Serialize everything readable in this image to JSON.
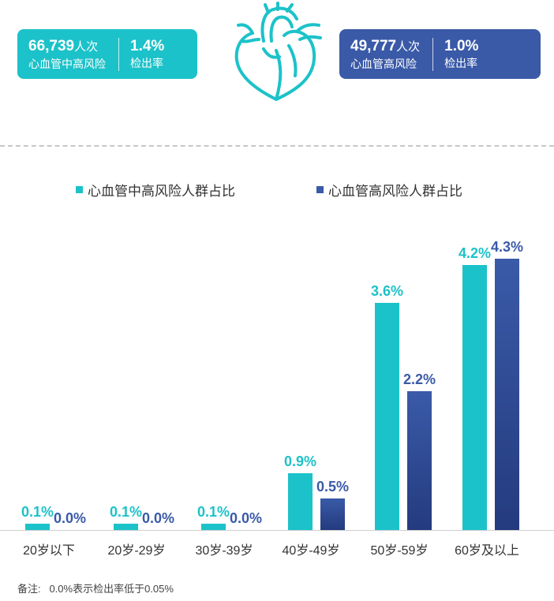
{
  "colors": {
    "teal": "#1cc2c9",
    "navy": "#3a5aa8",
    "navy_dark": "#243b7e",
    "grid": "#cfcfcf"
  },
  "stats": {
    "left": {
      "count": "66,739",
      "unit": "人次",
      "label": "心血管中高风险",
      "rate": "1.4%",
      "rate_label": "检出率"
    },
    "right": {
      "count": "49,777",
      "unit": "人次",
      "label": "心血管高风险",
      "rate": "1.0%",
      "rate_label": "检出率"
    }
  },
  "icons": {
    "heart": "heart-icon"
  },
  "chart_data": {
    "type": "bar",
    "categories": [
      "20岁以下",
      "20岁-29岁",
      "30岁-39岁",
      "40岁-49岁",
      "50岁-59岁",
      "60岁及以上"
    ],
    "series": [
      {
        "name": "心血管中高风险人群占比",
        "values": [
          0.1,
          0.1,
          0.1,
          0.9,
          3.6,
          4.2
        ],
        "labels": [
          "0.1%",
          "0.1%",
          "0.1%",
          "0.9%",
          "3.6%",
          "4.2%"
        ]
      },
      {
        "name": "心血管高风险人群占比",
        "values": [
          0.0,
          0.0,
          0.0,
          0.5,
          2.2,
          4.3
        ],
        "labels": [
          "0.0%",
          "0.0%",
          "0.0%",
          "0.5%",
          "2.2%",
          "4.3%"
        ]
      }
    ],
    "ylim": [
      0,
      4.6
    ],
    "legend_position": "top",
    "grid": false
  },
  "footnote": "备注:   0.0%表示检出率低于0.05%"
}
